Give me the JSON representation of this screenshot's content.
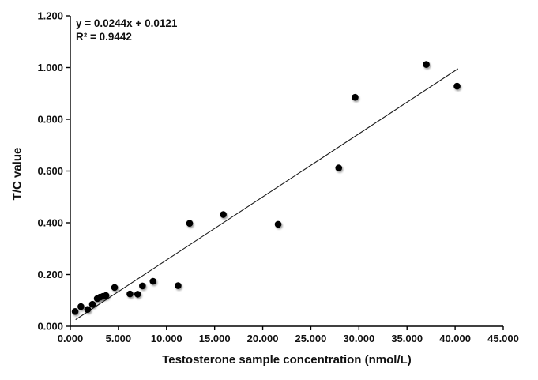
{
  "chart_data": {
    "type": "scatter",
    "title": "",
    "xlabel": "Testosterone sample concentration (nmol/L)",
    "ylabel": "T/C value",
    "annotation": {
      "equation": "y = 0.0244x + 0.0121",
      "r_squared": "R² = 0.9442"
    },
    "xlim": [
      0,
      45
    ],
    "ylim": [
      0,
      1.2
    ],
    "grid": false,
    "legend": "none",
    "xtick_values": [
      0,
      5,
      10,
      15,
      20,
      25,
      30,
      35,
      40,
      45
    ],
    "xtick_labels": [
      "0.000",
      "5.000",
      "10.000",
      "15.000",
      "20.000",
      "25.000",
      "30.000",
      "35.000",
      "40.000",
      "45.000"
    ],
    "ytick_values": [
      0,
      0.2,
      0.4,
      0.6,
      0.8,
      1.0,
      1.2
    ],
    "ytick_labels": [
      "0.000",
      "0.200",
      "0.400",
      "0.600",
      "0.800",
      "1.000",
      "1.200"
    ],
    "points": [
      {
        "x": 0.5,
        "y": 0.057
      },
      {
        "x": 1.1,
        "y": 0.076
      },
      {
        "x": 1.8,
        "y": 0.065
      },
      {
        "x": 2.3,
        "y": 0.085
      },
      {
        "x": 2.8,
        "y": 0.107
      },
      {
        "x": 3.1,
        "y": 0.113
      },
      {
        "x": 3.4,
        "y": 0.116
      },
      {
        "x": 3.7,
        "y": 0.119
      },
      {
        "x": 4.6,
        "y": 0.15
      },
      {
        "x": 6.2,
        "y": 0.125
      },
      {
        "x": 7.0,
        "y": 0.124
      },
      {
        "x": 7.5,
        "y": 0.156
      },
      {
        "x": 8.6,
        "y": 0.174
      },
      {
        "x": 11.2,
        "y": 0.157
      },
      {
        "x": 12.4,
        "y": 0.398
      },
      {
        "x": 15.9,
        "y": 0.432
      },
      {
        "x": 21.6,
        "y": 0.394
      },
      {
        "x": 27.9,
        "y": 0.612
      },
      {
        "x": 29.6,
        "y": 0.885
      },
      {
        "x": 37.0,
        "y": 1.012
      },
      {
        "x": 40.2,
        "y": 0.928
      }
    ],
    "trendline": {
      "type": "linear",
      "slope": 0.0244,
      "intercept": 0.0121,
      "x_start": 0.55,
      "x_end": 40.3
    },
    "colors": {
      "marker": "#000000",
      "trendline": "#1c1c1c",
      "axis": "#000000",
      "text": "#111111",
      "background": "#ffffff"
    }
  }
}
